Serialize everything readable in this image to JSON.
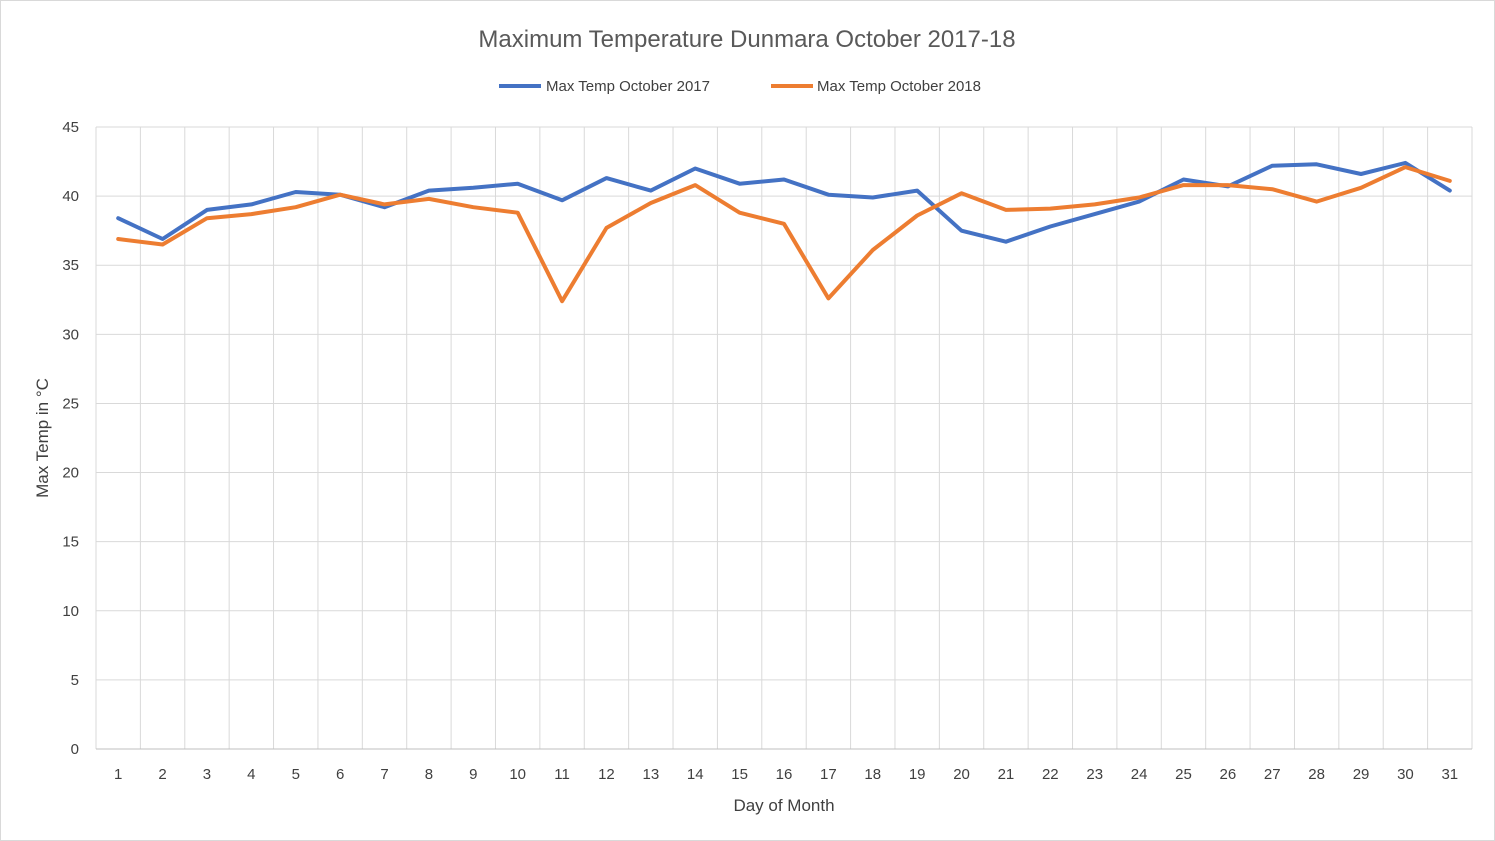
{
  "chart_data": {
    "type": "line",
    "title": "Maximum Temperature  Dunmara October 2017-18",
    "xlabel": "Day of Month",
    "ylabel": "Max Temp in °C",
    "ylim": [
      0,
      45
    ],
    "yticks": [
      0,
      5,
      10,
      15,
      20,
      25,
      30,
      35,
      40,
      45
    ],
    "grid": true,
    "legend_position": "top",
    "categories": [
      "1",
      "2",
      "3",
      "4",
      "5",
      "6",
      "7",
      "8",
      "9",
      "10",
      "11",
      "12",
      "13",
      "14",
      "15",
      "16",
      "17",
      "18",
      "19",
      "20",
      "21",
      "22",
      "23",
      "24",
      "25",
      "26",
      "27",
      "28",
      "29",
      "30",
      "31"
    ],
    "series": [
      {
        "name": "Max Temp October 2017",
        "color": "#4472C4",
        "values": [
          38.4,
          36.9,
          39.0,
          39.4,
          40.3,
          40.1,
          39.2,
          40.4,
          40.6,
          40.9,
          39.7,
          41.3,
          40.4,
          42.0,
          40.9,
          41.2,
          40.1,
          39.9,
          40.4,
          37.5,
          36.7,
          37.8,
          38.7,
          39.6,
          41.2,
          40.7,
          42.2,
          42.3,
          41.6,
          42.4,
          40.4
        ]
      },
      {
        "name": "Max Temp October 2018",
        "color": "#ED7D31",
        "values": [
          36.9,
          36.5,
          38.4,
          38.7,
          39.2,
          40.1,
          39.4,
          39.8,
          39.2,
          38.8,
          32.4,
          37.7,
          39.5,
          40.8,
          38.8,
          38.0,
          32.6,
          36.1,
          38.6,
          40.2,
          39.0,
          39.1,
          39.4,
          39.9,
          40.8,
          40.8,
          40.5,
          39.6,
          40.6,
          42.1,
          41.1
        ]
      }
    ]
  }
}
